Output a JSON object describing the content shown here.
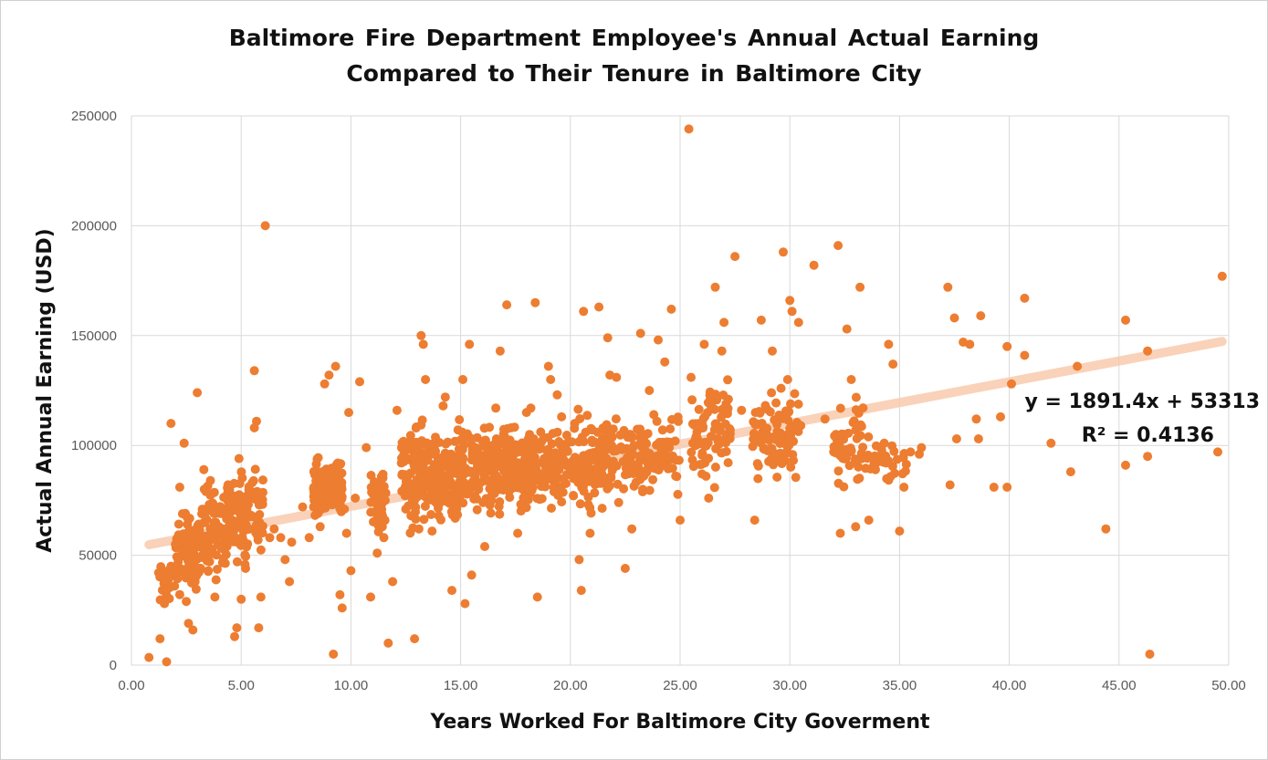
{
  "chart_data": {
    "type": "scatter",
    "title_lines": [
      "Baltimore Fire Department Employee's Annual Actual Earning",
      "Compared to Their Tenure in Baltimore City"
    ],
    "xlabel": "Years Worked For Baltimore City Goverment",
    "ylabel": "Actual Annual Earning (USD)",
    "xlim": [
      0,
      50
    ],
    "ylim": [
      0,
      250000
    ],
    "x_ticks": [
      "0.00",
      "5.00",
      "10.00",
      "15.00",
      "20.00",
      "25.00",
      "30.00",
      "35.00",
      "40.00",
      "45.00",
      "50.00"
    ],
    "y_ticks": [
      "0",
      "50000",
      "100000",
      "150000",
      "200000",
      "250000"
    ],
    "grid": true,
    "point_color": "#ED7D31",
    "trendline": {
      "color": "#F8CBAD",
      "slope": 1891.4,
      "intercept": 53313,
      "equation": "y = 1891.4x + 53313",
      "r_squared": "R² = 0.4136"
    },
    "cluster_points": [
      [
        0.8,
        3500
      ],
      [
        1.3,
        12000
      ],
      [
        1.6,
        1500
      ],
      [
        1.5,
        28000
      ],
      [
        1.6,
        34000
      ],
      [
        1.7,
        40000
      ],
      [
        1.8,
        45000
      ],
      [
        1.9,
        41000
      ],
      [
        2.0,
        55000
      ],
      [
        2.1,
        58000
      ],
      [
        1.8,
        110000
      ],
      [
        2.2,
        81000
      ],
      [
        2.4,
        101000
      ],
      [
        2.5,
        29000
      ],
      [
        2.6,
        19000
      ],
      [
        2.8,
        16000
      ],
      [
        3.0,
        124000
      ],
      [
        3.3,
        89000
      ],
      [
        3.6,
        84000
      ],
      [
        3.8,
        31000
      ],
      [
        4.8,
        17000
      ],
      [
        4.7,
        13000
      ],
      [
        5.0,
        30000
      ],
      [
        5.6,
        134000
      ],
      [
        5.6,
        108000
      ],
      [
        5.7,
        111000
      ],
      [
        5.8,
        17000
      ],
      [
        5.9,
        31000
      ],
      [
        6.1,
        200000
      ],
      [
        6.5,
        62000
      ],
      [
        7.0,
        48000
      ],
      [
        7.2,
        38000
      ],
      [
        7.3,
        56000
      ],
      [
        8.1,
        58000
      ],
      [
        8.5,
        69000
      ],
      [
        8.8,
        128000
      ],
      [
        9.0,
        132000
      ],
      [
        9.2,
        5000
      ],
      [
        9.3,
        136000
      ],
      [
        9.5,
        32000
      ],
      [
        9.6,
        26000
      ],
      [
        9.8,
        60000
      ],
      [
        9.9,
        115000
      ],
      [
        10.0,
        43000
      ],
      [
        10.4,
        129000
      ],
      [
        10.9,
        31000
      ],
      [
        11.2,
        51000
      ],
      [
        11.5,
        58000
      ],
      [
        11.7,
        10000
      ],
      [
        11.9,
        38000
      ],
      [
        12.5,
        71000
      ],
      [
        12.9,
        12000
      ],
      [
        13.2,
        150000
      ],
      [
        13.3,
        146000
      ],
      [
        13.4,
        130000
      ],
      [
        13.7,
        61000
      ],
      [
        14.0,
        68000
      ],
      [
        14.3,
        122000
      ],
      [
        14.6,
        34000
      ],
      [
        15.1,
        130000
      ],
      [
        15.2,
        28000
      ],
      [
        15.4,
        146000
      ],
      [
        15.5,
        41000
      ],
      [
        15.8,
        98000
      ],
      [
        16.4,
        75000
      ],
      [
        16.8,
        143000
      ],
      [
        17.1,
        164000
      ],
      [
        17.3,
        108000
      ],
      [
        18.0,
        115000
      ],
      [
        18.4,
        165000
      ],
      [
        18.5,
        31000
      ],
      [
        19.0,
        136000
      ],
      [
        19.4,
        123000
      ],
      [
        19.8,
        98000
      ],
      [
        20.2,
        110000
      ],
      [
        20.5,
        34000
      ],
      [
        20.6,
        161000
      ],
      [
        20.9,
        60000
      ],
      [
        21.3,
        163000
      ],
      [
        21.5,
        101000
      ],
      [
        21.7,
        149000
      ],
      [
        22.1,
        131000
      ],
      [
        22.5,
        44000
      ],
      [
        22.8,
        62000
      ],
      [
        23.2,
        151000
      ],
      [
        23.6,
        125000
      ],
      [
        24.0,
        148000
      ],
      [
        24.3,
        138000
      ],
      [
        24.6,
        162000
      ],
      [
        25.0,
        66000
      ],
      [
        25.4,
        244000
      ],
      [
        25.7,
        100000
      ],
      [
        26.0,
        87000
      ],
      [
        26.3,
        76000
      ],
      [
        26.6,
        172000
      ],
      [
        27.0,
        156000
      ],
      [
        27.5,
        186000
      ],
      [
        27.8,
        116000
      ],
      [
        28.4,
        66000
      ],
      [
        28.7,
        157000
      ],
      [
        29.2,
        143000
      ],
      [
        29.6,
        126000
      ],
      [
        29.7,
        188000
      ],
      [
        30.0,
        166000
      ],
      [
        30.1,
        161000
      ],
      [
        30.4,
        156000
      ],
      [
        31.1,
        182000
      ],
      [
        32.2,
        191000
      ],
      [
        32.3,
        60000
      ],
      [
        32.6,
        153000
      ],
      [
        33.0,
        63000
      ],
      [
        33.2,
        172000
      ],
      [
        33.6,
        66000
      ],
      [
        33.9,
        89000
      ],
      [
        34.3,
        101000
      ],
      [
        34.7,
        137000
      ],
      [
        35.0,
        61000
      ],
      [
        35.2,
        81000
      ],
      [
        35.5,
        97000
      ],
      [
        35.9,
        96000
      ],
      [
        37.2,
        172000
      ],
      [
        37.3,
        82000
      ],
      [
        37.5,
        158000
      ],
      [
        37.9,
        147000
      ],
      [
        38.2,
        146000
      ],
      [
        38.5,
        112000
      ],
      [
        38.7,
        159000
      ],
      [
        39.3,
        81000
      ],
      [
        39.6,
        113000
      ],
      [
        39.9,
        81000
      ],
      [
        40.7,
        167000
      ],
      [
        40.7,
        141000
      ],
      [
        41.9,
        101000
      ],
      [
        42.8,
        88000
      ],
      [
        43.1,
        136000
      ],
      [
        44.4,
        62000
      ],
      [
        45.3,
        91000
      ],
      [
        45.3,
        157000
      ],
      [
        46.3,
        143000
      ],
      [
        46.3,
        95000
      ],
      [
        46.4,
        5000
      ],
      [
        49.5,
        97000
      ],
      [
        49.7,
        177000
      ],
      [
        40.1,
        128000
      ],
      [
        39.9,
        145000
      ],
      [
        38.6,
        103000
      ],
      [
        37.6,
        103000
      ],
      [
        36.0,
        99000
      ],
      [
        34.5,
        146000
      ],
      [
        32.8,
        130000
      ],
      [
        31.6,
        112000
      ],
      [
        30.5,
        109000
      ],
      [
        29.9,
        130000
      ],
      [
        28.8,
        108000
      ],
      [
        27.2,
        121000
      ],
      [
        26.9,
        143000
      ],
      [
        26.1,
        146000
      ],
      [
        25.5,
        131000
      ],
      [
        24.8,
        86000
      ],
      [
        24.2,
        107000
      ],
      [
        23.8,
        114000
      ],
      [
        23.3,
        80000
      ],
      [
        22.9,
        100000
      ],
      [
        22.2,
        74000
      ],
      [
        21.8,
        132000
      ],
      [
        21.0,
        107000
      ],
      [
        20.4,
        48000
      ],
      [
        19.6,
        113000
      ],
      [
        19.1,
        130000
      ],
      [
        18.8,
        94000
      ],
      [
        18.2,
        117000
      ],
      [
        17.6,
        60000
      ],
      [
        17.0,
        95000
      ],
      [
        16.6,
        117000
      ],
      [
        16.1,
        54000
      ],
      [
        15.9,
        83000
      ],
      [
        15.0,
        86000
      ],
      [
        14.8,
        75000
      ],
      [
        14.2,
        118000
      ],
      [
        13.8,
        86000
      ],
      [
        13.1,
        62000
      ],
      [
        12.8,
        74000
      ],
      [
        12.3,
        92000
      ],
      [
        12.1,
        116000
      ],
      [
        11.4,
        69000
      ],
      [
        11.0,
        78000
      ],
      [
        10.7,
        99000
      ],
      [
        10.2,
        76000
      ],
      [
        9.7,
        71000
      ],
      [
        9.4,
        92000
      ],
      [
        8.9,
        82000
      ],
      [
        8.6,
        63000
      ],
      [
        8.3,
        72000
      ],
      [
        7.8,
        72000
      ],
      [
        6.8,
        58000
      ],
      [
        6.3,
        58000
      ],
      [
        5.5,
        83000
      ],
      [
        5.3,
        74000
      ],
      [
        5.2,
        44000
      ],
      [
        4.9,
        94000
      ],
      [
        4.4,
        72000
      ],
      [
        4.2,
        62000
      ],
      [
        4.0,
        60000
      ],
      [
        3.5,
        43000
      ],
      [
        3.4,
        79000
      ],
      [
        3.2,
        49000
      ],
      [
        3.1,
        56000
      ],
      [
        2.9,
        38000
      ],
      [
        2.7,
        43000
      ],
      [
        2.3,
        50000
      ]
    ],
    "clusters": [
      {
        "x": [
          1.2,
          2.0
        ],
        "y": [
          20000,
          58000
        ],
        "n": 18
      },
      {
        "x": [
          2.0,
          3.2
        ],
        "y": [
          30000,
          75000
        ],
        "n": 90
      },
      {
        "x": [
          3.2,
          4.2
        ],
        "y": [
          35000,
          90000
        ],
        "n": 60
      },
      {
        "x": [
          4.2,
          5.2
        ],
        "y": [
          40000,
          95000
        ],
        "n": 85
      },
      {
        "x": [
          5.2,
          6.0
        ],
        "y": [
          45000,
          95000
        ],
        "n": 45
      },
      {
        "x": [
          8.3,
          9.6
        ],
        "y": [
          65000,
          98000
        ],
        "n": 150
      },
      {
        "x": [
          10.9,
          11.6
        ],
        "y": [
          55000,
          95000
        ],
        "n": 55
      },
      {
        "x": [
          12.3,
          13.6
        ],
        "y": [
          55000,
          120000
        ],
        "n": 120
      },
      {
        "x": [
          13.6,
          14.9
        ],
        "y": [
          60000,
          110000
        ],
        "n": 110
      },
      {
        "x": [
          14.9,
          15.9
        ],
        "y": [
          60000,
          115000
        ],
        "n": 80
      },
      {
        "x": [
          16.0,
          17.4
        ],
        "y": [
          65000,
          115000
        ],
        "n": 120
      },
      {
        "x": [
          17.4,
          18.6
        ],
        "y": [
          65000,
          115000
        ],
        "n": 90
      },
      {
        "x": [
          18.6,
          19.9
        ],
        "y": [
          65000,
          115000
        ],
        "n": 80
      },
      {
        "x": [
          20.0,
          21.5
        ],
        "y": [
          65000,
          120000
        ],
        "n": 90
      },
      {
        "x": [
          21.5,
          23.0
        ],
        "y": [
          70000,
          120000
        ],
        "n": 60
      },
      {
        "x": [
          23.0,
          25.0
        ],
        "y": [
          70000,
          125000
        ],
        "n": 70
      },
      {
        "x": [
          25.5,
          27.3
        ],
        "y": [
          75000,
          135000
        ],
        "n": 80
      },
      {
        "x": [
          28.2,
          30.4
        ],
        "y": [
          80000,
          130000
        ],
        "n": 100
      },
      {
        "x": [
          32.0,
          33.6
        ],
        "y": [
          75000,
          125000
        ],
        "n": 55
      },
      {
        "x": [
          33.6,
          35.5
        ],
        "y": [
          80000,
          105000
        ],
        "n": 25
      }
    ]
  }
}
